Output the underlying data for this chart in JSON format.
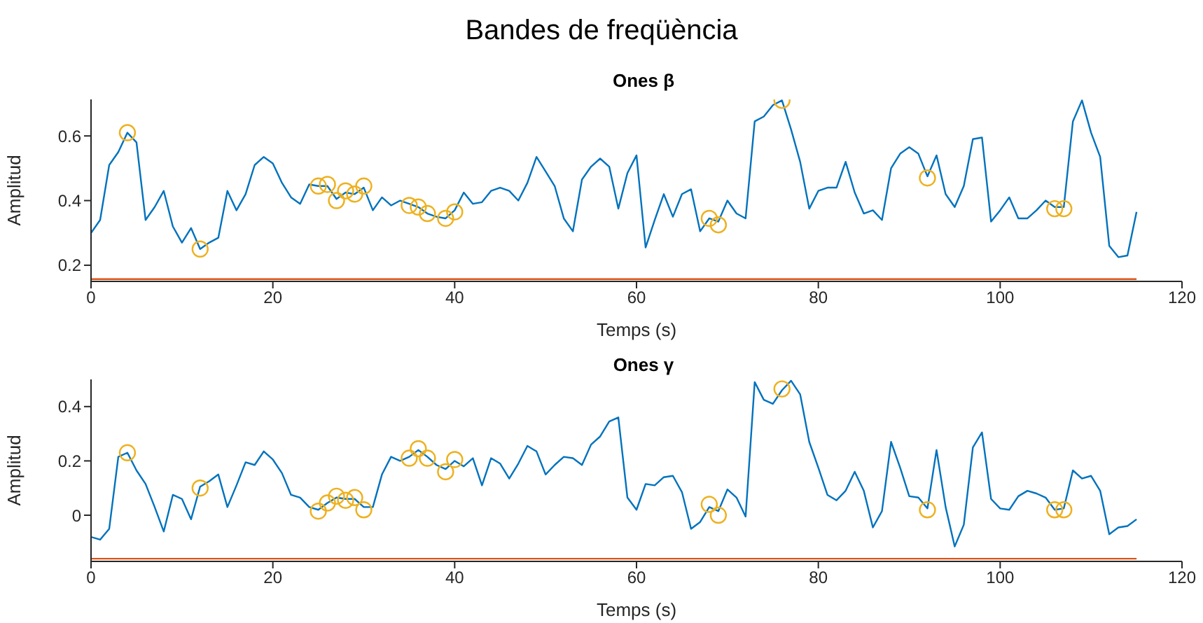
{
  "chart_data": [
    {
      "type": "line",
      "title": "Bandes de freqüència",
      "subtitle": "Ones β",
      "xlabel": "Temps (s)",
      "ylabel": "Amplitud",
      "x": [
        0,
        1,
        2,
        3,
        4,
        5,
        6,
        7,
        8,
        9,
        10,
        11,
        12,
        13,
        14,
        15,
        16,
        17,
        18,
        19,
        20,
        21,
        22,
        23,
        24,
        25,
        26,
        27,
        28,
        29,
        30,
        31,
        32,
        33,
        34,
        35,
        36,
        37,
        38,
        39,
        40,
        41,
        42,
        43,
        44,
        45,
        46,
        47,
        48,
        49,
        50,
        51,
        52,
        53,
        54,
        55,
        56,
        57,
        58,
        59,
        60,
        61,
        62,
        63,
        64,
        65,
        66,
        67,
        68,
        69,
        70,
        71,
        72,
        73,
        74,
        75,
        76,
        77,
        78,
        79,
        80,
        81,
        82,
        83,
        84,
        85,
        86,
        87,
        88,
        89,
        90,
        91,
        92,
        93,
        94,
        95,
        96,
        97,
        98,
        99,
        100,
        101,
        102,
        103,
        104,
        105,
        106,
        107,
        108,
        109,
        110,
        111,
        112,
        113,
        114,
        115
      ],
      "series": [
        {
          "color": "#0072bd",
          "values": [
            0.3,
            0.34,
            0.51,
            0.55,
            0.61,
            0.58,
            0.34,
            0.38,
            0.43,
            0.32,
            0.27,
            0.315,
            0.25,
            0.27,
            0.285,
            0.43,
            0.37,
            0.42,
            0.51,
            0.535,
            0.515,
            0.455,
            0.41,
            0.39,
            0.45,
            0.445,
            0.445,
            0.405,
            0.425,
            0.42,
            0.44,
            0.37,
            0.41,
            0.385,
            0.4,
            0.39,
            0.38,
            0.36,
            0.35,
            0.345,
            0.37,
            0.425,
            0.39,
            0.395,
            0.43,
            0.44,
            0.43,
            0.4,
            0.455,
            0.535,
            0.49,
            0.445,
            0.345,
            0.305,
            0.465,
            0.505,
            0.53,
            0.505,
            0.375,
            0.485,
            0.54,
            0.255,
            0.34,
            0.42,
            0.35,
            0.42,
            0.435,
            0.305,
            0.345,
            0.335,
            0.4,
            0.36,
            0.345,
            0.645,
            0.66,
            0.695,
            0.71,
            0.62,
            0.52,
            0.375,
            0.43,
            0.44,
            0.44,
            0.52,
            0.425,
            0.36,
            0.37,
            0.34,
            0.5,
            0.545,
            0.565,
            0.545,
            0.475,
            0.54,
            0.42,
            0.38,
            0.445,
            0.59,
            0.595,
            0.335,
            0.37,
            0.41,
            0.345,
            0.345,
            0.37,
            0.4,
            0.38,
            0.38,
            0.645,
            0.71,
            0.61,
            0.535,
            0.26,
            0.225,
            0.23,
            0.365
          ]
        },
        {
          "type": "scatter",
          "color": "#edb120",
          "marker": "circle",
          "x": [
            4,
            12,
            25,
            26,
            27,
            28,
            29,
            30,
            35,
            36,
            37,
            39,
            40,
            68,
            69,
            76,
            92,
            106,
            107
          ],
          "values": [
            0.61,
            0.25,
            0.445,
            0.45,
            0.4,
            0.43,
            0.42,
            0.445,
            0.385,
            0.38,
            0.36,
            0.345,
            0.365,
            0.345,
            0.325,
            0.71,
            0.47,
            0.375,
            0.375
          ]
        },
        {
          "type": "line",
          "color": "#d95319",
          "x": [
            0,
            115
          ],
          "values": [
            0.157,
            0.157
          ]
        }
      ],
      "xlim": [
        0,
        120
      ],
      "xticks": [
        0,
        20,
        40,
        60,
        80,
        100,
        120
      ],
      "ylim": [
        0.15,
        0.713
      ],
      "yticks": [
        0.2,
        0.4,
        0.6
      ],
      "grid": false,
      "legend": false
    },
    {
      "type": "line",
      "subtitle": "Ones γ",
      "xlabel": "Temps (s)",
      "ylabel": "Amplitud",
      "x": [
        0,
        1,
        2,
        3,
        4,
        5,
        6,
        7,
        8,
        9,
        10,
        11,
        12,
        13,
        14,
        15,
        16,
        17,
        18,
        19,
        20,
        21,
        22,
        23,
        24,
        25,
        26,
        27,
        28,
        29,
        30,
        31,
        32,
        33,
        34,
        35,
        36,
        37,
        38,
        39,
        40,
        41,
        42,
        43,
        44,
        45,
        46,
        47,
        48,
        49,
        50,
        51,
        52,
        53,
        54,
        55,
        56,
        57,
        58,
        59,
        60,
        61,
        62,
        63,
        64,
        65,
        66,
        67,
        68,
        69,
        70,
        71,
        72,
        73,
        74,
        75,
        76,
        77,
        78,
        79,
        80,
        81,
        82,
        83,
        84,
        85,
        86,
        87,
        88,
        89,
        90,
        91,
        92,
        93,
        94,
        95,
        96,
        97,
        98,
        99,
        100,
        101,
        102,
        103,
        104,
        105,
        106,
        107,
        108,
        109,
        110,
        111,
        112,
        113,
        114,
        115
      ],
      "series": [
        {
          "color": "#0072bd",
          "values": [
            -0.08,
            -0.09,
            -0.05,
            0.215,
            0.23,
            0.165,
            0.115,
            0.03,
            -0.06,
            0.075,
            0.06,
            -0.015,
            0.105,
            0.125,
            0.15,
            0.03,
            0.11,
            0.195,
            0.185,
            0.235,
            0.205,
            0.155,
            0.075,
            0.065,
            0.03,
            0.02,
            0.045,
            0.065,
            0.06,
            0.06,
            0.03,
            0.03,
            0.15,
            0.215,
            0.2,
            0.215,
            0.24,
            0.215,
            0.185,
            0.17,
            0.2,
            0.18,
            0.21,
            0.11,
            0.21,
            0.19,
            0.135,
            0.19,
            0.255,
            0.235,
            0.15,
            0.185,
            0.215,
            0.21,
            0.185,
            0.26,
            0.29,
            0.345,
            0.36,
            0.065,
            0.02,
            0.115,
            0.11,
            0.14,
            0.145,
            0.085,
            -0.05,
            -0.025,
            0.03,
            0.015,
            0.095,
            0.065,
            -0.005,
            0.49,
            0.425,
            0.41,
            0.46,
            0.495,
            0.445,
            0.27,
            0.175,
            0.075,
            0.055,
            0.09,
            0.16,
            0.09,
            -0.045,
            0.015,
            0.27,
            0.175,
            0.07,
            0.065,
            0.025,
            0.24,
            0.03,
            -0.115,
            -0.035,
            0.25,
            0.305,
            0.06,
            0.025,
            0.02,
            0.07,
            0.09,
            0.08,
            0.065,
            0.02,
            0.025,
            0.165,
            0.135,
            0.145,
            0.09,
            -0.07,
            -0.045,
            -0.04,
            -0.015
          ]
        },
        {
          "type": "scatter",
          "color": "#edb120",
          "marker": "circle",
          "x": [
            4,
            12,
            25,
            26,
            27,
            28,
            29,
            30,
            35,
            36,
            37,
            39,
            40,
            68,
            69,
            76,
            92,
            106,
            107
          ],
          "values": [
            0.23,
            0.1,
            0.015,
            0.045,
            0.07,
            0.055,
            0.065,
            0.02,
            0.21,
            0.245,
            0.21,
            0.16,
            0.205,
            0.04,
            0.0,
            0.465,
            0.02,
            0.02,
            0.02
          ]
        },
        {
          "type": "line",
          "color": "#d95319",
          "x": [
            0,
            115
          ],
          "values": [
            -0.16,
            -0.16
          ]
        }
      ],
      "xlim": [
        0,
        120
      ],
      "xticks": [
        0,
        20,
        40,
        60,
        80,
        100,
        120
      ],
      "ylim": [
        -0.17,
        0.5
      ],
      "yticks": [
        0,
        0.2,
        0.4
      ],
      "grid": false,
      "legend": false
    }
  ]
}
